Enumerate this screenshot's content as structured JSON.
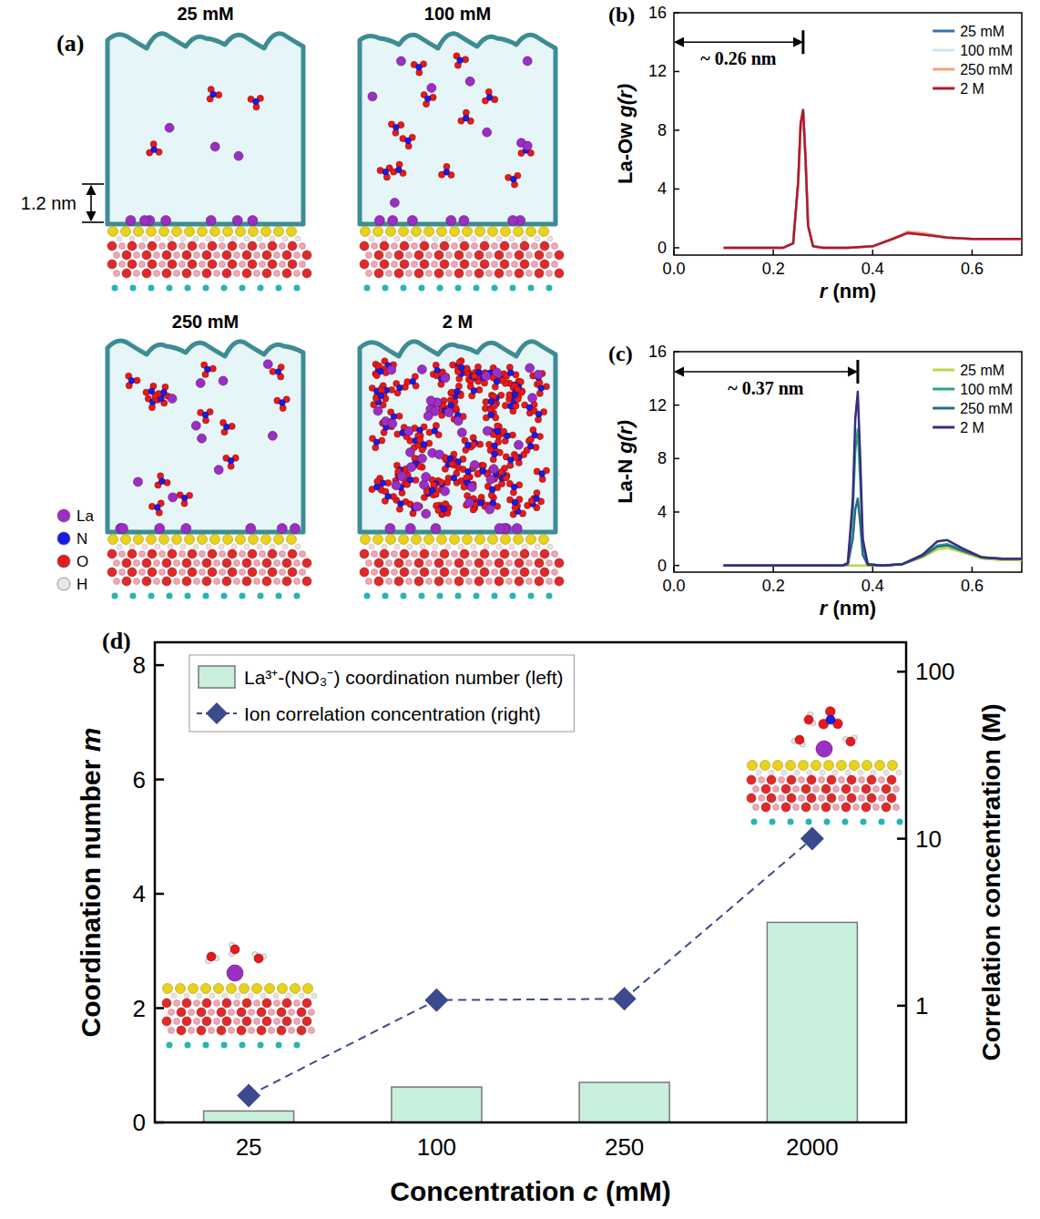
{
  "diagram": {
    "label": "(a)",
    "panels": [
      "25 mM",
      "100 mM",
      "250 mM",
      "2 M"
    ],
    "scale_bar": "1.2 nm",
    "legend": [
      {
        "name": "La",
        "color": "#9b2fc4"
      },
      {
        "name": "N",
        "color": "#1a1ae6"
      },
      {
        "name": "O",
        "color": "#e61a1a"
      },
      {
        "name": "H",
        "color": "#e8e8e8"
      }
    ]
  },
  "chart_data": [
    {
      "type": "line",
      "label": "(b)",
      "x_label": "r (nm)",
      "y_label": "La-Ow  g(r)",
      "xlim": [
        0,
        0.7
      ],
      "ylim": [
        -0.5,
        16
      ],
      "xticks": [
        {
          "value": 0,
          "label": "0.0"
        },
        0.2,
        0.4,
        0.6
      ],
      "yticks": [
        0,
        4,
        8,
        12,
        16
      ],
      "legend": "top-right",
      "x": [
        0.1,
        0.2,
        0.22,
        0.24,
        0.25,
        0.255,
        0.26,
        0.265,
        0.27,
        0.28,
        0.3,
        0.35,
        0.4,
        0.44,
        0.47,
        0.5,
        0.55,
        0.6,
        0.65,
        0.7
      ],
      "series": [
        {
          "name": "25 mM",
          "color": "#3a6fb8",
          "values": [
            0,
            0,
            0,
            0.3,
            4.4,
            8.3,
            9.3,
            5.9,
            1.5,
            0.1,
            0,
            0,
            0.1,
            0.6,
            1.0,
            0.9,
            0.7,
            0.6,
            0.6,
            0.6
          ]
        },
        {
          "name": "100 mM",
          "color": "#cde6ee",
          "values": [
            0,
            0,
            0,
            0.3,
            4.3,
            8.2,
            9.2,
            5.8,
            1.4,
            0.1,
            0,
            0,
            0.1,
            0.6,
            1.0,
            0.9,
            0.7,
            0.6,
            0.6,
            0.6
          ]
        },
        {
          "name": "250 mM",
          "color": "#f4a07a",
          "values": [
            0,
            0,
            0,
            0.3,
            4.4,
            8.3,
            9.3,
            5.9,
            1.5,
            0.1,
            0,
            0,
            0.1,
            0.6,
            1.1,
            1.0,
            0.7,
            0.6,
            0.6,
            0.6
          ]
        },
        {
          "name": "2 M",
          "color": "#b2182b",
          "values": [
            0,
            0,
            0,
            0.3,
            4.5,
            8.5,
            9.4,
            6.0,
            1.5,
            0.1,
            0,
            0,
            0.1,
            0.6,
            1.0,
            0.9,
            0.7,
            0.6,
            0.6,
            0.6
          ]
        }
      ],
      "annotations": [
        {
          "text": "~ 0.26 nm",
          "x": [
            0,
            0.26
          ],
          "y": 14
        }
      ]
    },
    {
      "type": "line",
      "label": "(c)",
      "x_label": "r (nm)",
      "y_label": "La-N  g(r)",
      "xlim": [
        0,
        0.7
      ],
      "ylim": [
        -0.5,
        16
      ],
      "xticks": [
        {
          "value": 0,
          "label": "0.0"
        },
        0.2,
        0.4,
        0.6
      ],
      "yticks": [
        0,
        4,
        8,
        12,
        16
      ],
      "legend": "top-right",
      "x": [
        0.1,
        0.3,
        0.34,
        0.35,
        0.36,
        0.365,
        0.37,
        0.375,
        0.38,
        0.39,
        0.42,
        0.46,
        0.5,
        0.53,
        0.55,
        0.58,
        0.62,
        0.66,
        0.7
      ],
      "series": [
        {
          "name": "25 mM",
          "color": "#b8d94a",
          "values": [
            0,
            0,
            0,
            0,
            0,
            0,
            0,
            0,
            0,
            0,
            0,
            0.1,
            0.6,
            1.2,
            1.3,
            1.0,
            0.5,
            0.4,
            0.4
          ]
        },
        {
          "name": "100 mM",
          "color": "#27a67e",
          "values": [
            0,
            0,
            0,
            0.15,
            4,
            8.6,
            10.2,
            6.3,
            1.5,
            0.1,
            0,
            0.1,
            0.7,
            1.5,
            1.6,
            1.2,
            0.6,
            0.5,
            0.5
          ]
        },
        {
          "name": "250 mM",
          "color": "#2a6b84",
          "values": [
            0,
            0,
            0,
            0.1,
            2,
            4.2,
            5,
            3.1,
            0.8,
            0.05,
            0,
            0.1,
            0.7,
            1.4,
            1.5,
            1.1,
            0.6,
            0.5,
            0.5
          ]
        },
        {
          "name": "2 M",
          "color": "#3b2c7e",
          "values": [
            0,
            0,
            0,
            0.2,
            5,
            11,
            13,
            8,
            2,
            0.1,
            0,
            0.1,
            0.8,
            1.8,
            1.9,
            1.3,
            0.6,
            0.5,
            0.5
          ]
        }
      ],
      "annotations": [
        {
          "text": "~ 0.37 nm",
          "x": [
            0,
            0.37
          ],
          "y": 14.5
        }
      ]
    },
    {
      "type": "bar",
      "label": "(d)",
      "x_label": "Concentration c (mM)",
      "y_label": "Coordination number m",
      "y2_label": "Correlation concentration (M)",
      "categories": [
        "25",
        "100",
        "250",
        "2000"
      ],
      "ylim": [
        0,
        8.4
      ],
      "yticks": [
        0,
        2,
        4,
        6,
        8
      ],
      "y2lim": [
        0.2,
        150
      ],
      "y2ticks": [
        1,
        10,
        100
      ],
      "log": "y2",
      "legend": "top-left",
      "series": [
        {
          "name": "La³⁺-(NO₃⁻) coordination number (left)",
          "type": "bar",
          "color": "#c8f0dc",
          "values": [
            0.2,
            0.62,
            0.7,
            3.5
          ]
        },
        {
          "name": "Ion correlation concentration (right)",
          "type": "line",
          "axis": "y2",
          "color": "#3b4a8c",
          "marker": "diamond",
          "line_style": "dashed",
          "values": [
            0.29,
            1.08,
            1.1,
            10
          ]
        }
      ]
    }
  ]
}
